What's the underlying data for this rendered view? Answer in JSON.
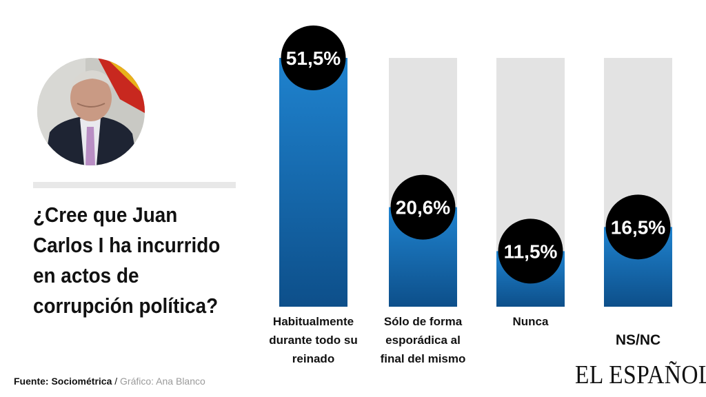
{
  "question": "¿Cree que Juan Carlos I ha incurrido en actos de corrupción política?",
  "colors": {
    "bar_top": "#1f83cf",
    "bar_bottom": "#0d4f8a",
    "track": "#e3e3e3",
    "value_circle": "#000000"
  },
  "chart_data": {
    "type": "bar",
    "categories": [
      "Habitualmente durante todo su reinado",
      "Sólo de forma esporádica al final del mismo",
      "Nunca",
      "NS/NC"
    ],
    "values": [
      51.5,
      20.6,
      11.5,
      16.5
    ],
    "value_labels": [
      "51,5%",
      "20,6%",
      "11,5%",
      "16,5%"
    ],
    "unit": "%",
    "ylim": [
      0,
      51.5
    ]
  },
  "footer": {
    "source_label": "Fuente: Sociométrica",
    "separator": " / ",
    "credit": "Gráfico: Ana Blanco"
  },
  "brand": "EL ESPAÑOL"
}
